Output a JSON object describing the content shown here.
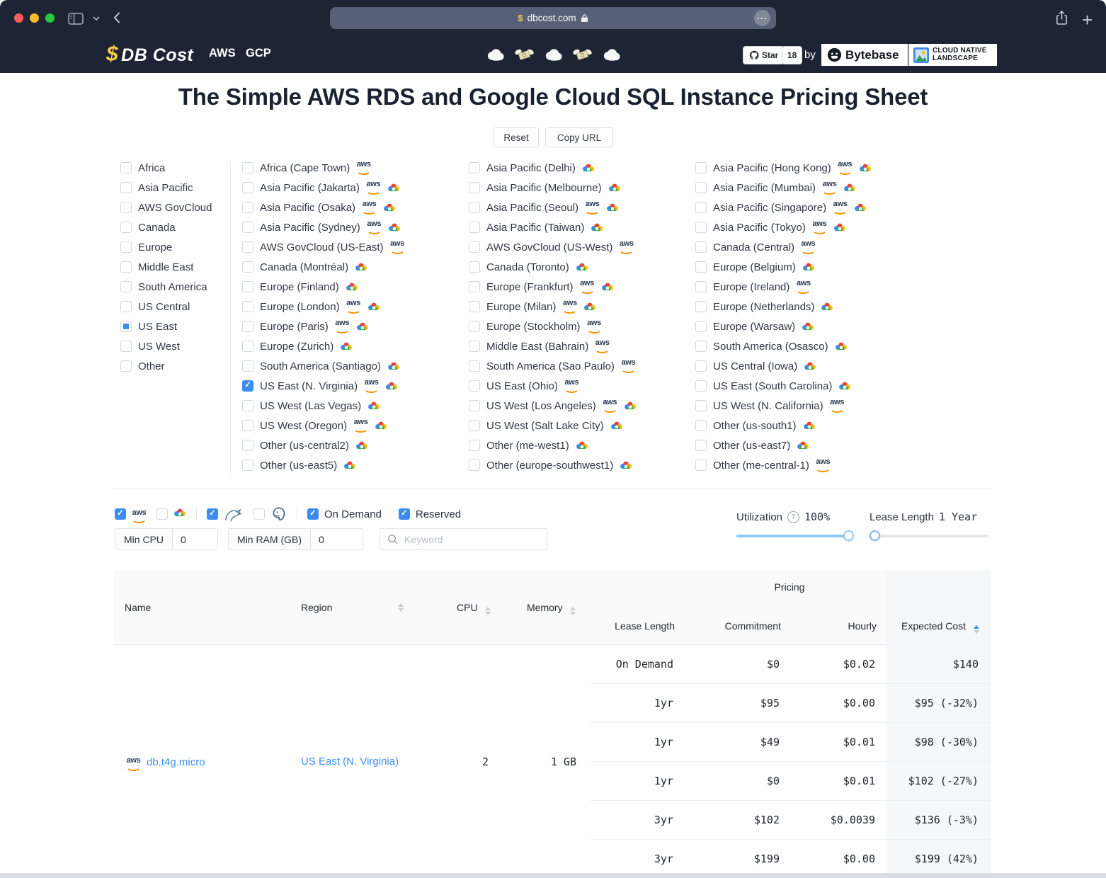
{
  "browser": {
    "url": "dbcost.com"
  },
  "header": {
    "logo": {
      "dollar": "$",
      "name": "DB Cost"
    },
    "nav": [
      {
        "label": "AWS"
      },
      {
        "label": "GCP"
      }
    ],
    "decor_icons": [
      "cloud",
      "money-with-wings",
      "cloud",
      "money-with-wings",
      "cloud"
    ],
    "github": {
      "star_label": "Star",
      "count": "18"
    },
    "by": "by",
    "bytebase_label": "Bytebase",
    "landscape_line1": "CLOUD NATIVE",
    "landscape_line2": "LANDSCAPE"
  },
  "page": {
    "title": "The Simple AWS RDS and Google Cloud SQL Instance Pricing Sheet",
    "reset_label": "Reset",
    "copy_url_label": "Copy URL"
  },
  "region_filters": {
    "groups": [
      {
        "label": "Africa",
        "state": "unchecked"
      },
      {
        "label": "Asia Pacific",
        "state": "unchecked"
      },
      {
        "label": "AWS GovCloud",
        "state": "unchecked"
      },
      {
        "label": "Canada",
        "state": "unchecked"
      },
      {
        "label": "Europe",
        "state": "unchecked"
      },
      {
        "label": "Middle East",
        "state": "unchecked"
      },
      {
        "label": "South America",
        "state": "unchecked"
      },
      {
        "label": "US Central",
        "state": "unchecked"
      },
      {
        "label": "US East",
        "state": "indeterminate"
      },
      {
        "label": "US West",
        "state": "unchecked"
      },
      {
        "label": "Other",
        "state": "unchecked"
      }
    ],
    "col2": [
      {
        "label": "Africa (Cape Town)",
        "providers": [
          "aws"
        ],
        "state": "unchecked"
      },
      {
        "label": "Asia Pacific (Jakarta)",
        "providers": [
          "aws",
          "gcp"
        ],
        "state": "unchecked"
      },
      {
        "label": "Asia Pacific (Osaka)",
        "providers": [
          "aws",
          "gcp"
        ],
        "state": "unchecked"
      },
      {
        "label": "Asia Pacific (Sydney)",
        "providers": [
          "aws",
          "gcp"
        ],
        "state": "unchecked"
      },
      {
        "label": "AWS GovCloud (US-East)",
        "providers": [
          "aws"
        ],
        "state": "unchecked"
      },
      {
        "label": "Canada (Montréal)",
        "providers": [
          "gcp"
        ],
        "state": "unchecked"
      },
      {
        "label": "Europe (Finland)",
        "providers": [
          "gcp"
        ],
        "state": "unchecked"
      },
      {
        "label": "Europe (London)",
        "providers": [
          "aws",
          "gcp"
        ],
        "state": "unchecked"
      },
      {
        "label": "Europe (Paris)",
        "providers": [
          "aws",
          "gcp"
        ],
        "state": "unchecked"
      },
      {
        "label": "Europe (Zurich)",
        "providers": [
          "gcp"
        ],
        "state": "unchecked"
      },
      {
        "label": "South America (Santiago)",
        "providers": [
          "gcp"
        ],
        "state": "unchecked"
      },
      {
        "label": "US East (N. Virginia)",
        "providers": [
          "aws",
          "gcp"
        ],
        "state": "checked"
      },
      {
        "label": "US West (Las Vegas)",
        "providers": [
          "gcp"
        ],
        "state": "unchecked"
      },
      {
        "label": "US West (Oregon)",
        "providers": [
          "aws",
          "gcp"
        ],
        "state": "unchecked"
      },
      {
        "label": "Other (us-central2)",
        "providers": [
          "gcp"
        ],
        "state": "unchecked"
      },
      {
        "label": "Other (us-east5)",
        "providers": [
          "gcp"
        ],
        "state": "unchecked"
      }
    ],
    "col3": [
      {
        "label": "Asia Pacific (Delhi)",
        "providers": [
          "gcp"
        ],
        "state": "unchecked"
      },
      {
        "label": "Asia Pacific (Melbourne)",
        "providers": [
          "gcp"
        ],
        "state": "unchecked"
      },
      {
        "label": "Asia Pacific (Seoul)",
        "providers": [
          "aws",
          "gcp"
        ],
        "state": "unchecked"
      },
      {
        "label": "Asia Pacific (Taiwan)",
        "providers": [
          "gcp"
        ],
        "state": "unchecked"
      },
      {
        "label": "AWS GovCloud (US-West)",
        "providers": [
          "aws"
        ],
        "state": "unchecked"
      },
      {
        "label": "Canada (Toronto)",
        "providers": [
          "gcp"
        ],
        "state": "unchecked"
      },
      {
        "label": "Europe (Frankfurt)",
        "providers": [
          "aws",
          "gcp"
        ],
        "state": "unchecked"
      },
      {
        "label": "Europe (Milan)",
        "providers": [
          "aws",
          "gcp"
        ],
        "state": "unchecked"
      },
      {
        "label": "Europe (Stockholm)",
        "providers": [
          "aws"
        ],
        "state": "unchecked"
      },
      {
        "label": "Middle East (Bahrain)",
        "providers": [
          "aws"
        ],
        "state": "unchecked"
      },
      {
        "label": "South America (Sao Paulo)",
        "providers": [
          "aws"
        ],
        "state": "unchecked"
      },
      {
        "label": "US East (Ohio)",
        "providers": [
          "aws"
        ],
        "state": "unchecked"
      },
      {
        "label": "US West (Los Angeles)",
        "providers": [
          "aws",
          "gcp"
        ],
        "state": "unchecked"
      },
      {
        "label": "US West (Salt Lake City)",
        "providers": [
          "gcp"
        ],
        "state": "unchecked"
      },
      {
        "label": "Other (me-west1)",
        "providers": [
          "gcp"
        ],
        "state": "unchecked"
      },
      {
        "label": "Other (europe-southwest1)",
        "providers": [
          "gcp"
        ],
        "state": "unchecked"
      }
    ],
    "col4": [
      {
        "label": "Asia Pacific (Hong Kong)",
        "providers": [
          "aws",
          "gcp"
        ],
        "state": "unchecked"
      },
      {
        "label": "Asia Pacific (Mumbai)",
        "providers": [
          "aws",
          "gcp"
        ],
        "state": "unchecked"
      },
      {
        "label": "Asia Pacific (Singapore)",
        "providers": [
          "aws",
          "gcp"
        ],
        "state": "unchecked"
      },
      {
        "label": "Asia Pacific (Tokyo)",
        "providers": [
          "aws",
          "gcp"
        ],
        "state": "unchecked"
      },
      {
        "label": "Canada (Central)",
        "providers": [
          "aws"
        ],
        "state": "unchecked"
      },
      {
        "label": "Europe (Belgium)",
        "providers": [
          "gcp"
        ],
        "state": "unchecked"
      },
      {
        "label": "Europe (Ireland)",
        "providers": [
          "aws"
        ],
        "state": "unchecked"
      },
      {
        "label": "Europe (Netherlands)",
        "providers": [
          "gcp"
        ],
        "state": "unchecked"
      },
      {
        "label": "Europe (Warsaw)",
        "providers": [
          "gcp"
        ],
        "state": "unchecked"
      },
      {
        "label": "South America (Osasco)",
        "providers": [
          "gcp"
        ],
        "state": "unchecked"
      },
      {
        "label": "US Central (Iowa)",
        "providers": [
          "gcp"
        ],
        "state": "unchecked"
      },
      {
        "label": "US East (South Carolina)",
        "providers": [
          "gcp"
        ],
        "state": "unchecked"
      },
      {
        "label": "US West (N. California)",
        "providers": [
          "aws"
        ],
        "state": "unchecked"
      },
      {
        "label": "Other (us-south1)",
        "providers": [
          "gcp"
        ],
        "state": "unchecked"
      },
      {
        "label": "Other (us-east7)",
        "providers": [
          "gcp"
        ],
        "state": "unchecked"
      },
      {
        "label": "Other (me-central-1)",
        "providers": [
          "aws"
        ],
        "state": "unchecked"
      }
    ]
  },
  "filters": {
    "provider": [
      {
        "icon": "aws",
        "state": "checked"
      },
      {
        "icon": "gcp",
        "state": "unchecked"
      }
    ],
    "engine": [
      {
        "icon": "mysql",
        "state": "checked"
      },
      {
        "icon": "postgres",
        "state": "unchecked"
      }
    ],
    "charge": [
      {
        "label": "On Demand",
        "state": "checked"
      },
      {
        "label": "Reserved",
        "state": "checked"
      }
    ],
    "min_cpu": {
      "label": "Min CPU",
      "value": "0"
    },
    "min_ram": {
      "label": "Min RAM (GB)",
      "value": "0"
    },
    "keyword": {
      "placeholder": "Keyword"
    },
    "utilization": {
      "label": "Utilization",
      "value": "100%"
    },
    "lease": {
      "label": "Lease Length",
      "value": "1 Year"
    }
  },
  "table": {
    "pricing_group": "Pricing",
    "columns": {
      "name": "Name",
      "region": "Region",
      "cpu": "CPU",
      "memory": "Memory",
      "lease": "Lease Length",
      "commitment": "Commitment",
      "hourly": "Hourly",
      "expected": "Expected Cost"
    },
    "row": {
      "name": "db.t4g.micro",
      "provider": "aws",
      "region": "US East (N. Virginia)",
      "cpu": "2",
      "memory": "1 GB"
    },
    "pricing_rows": [
      {
        "lease": "On Demand",
        "commitment": "$0",
        "hourly": "$0.02",
        "expected": "$140"
      },
      {
        "lease": "1yr",
        "commitment": "$95",
        "hourly": "$0.00",
        "expected": "$95 (-32%)"
      },
      {
        "lease": "1yr",
        "commitment": "$49",
        "hourly": "$0.01",
        "expected": "$98 (-30%)"
      },
      {
        "lease": "1yr",
        "commitment": "$0",
        "hourly": "$0.01",
        "expected": "$102 (-27%)"
      },
      {
        "lease": "3yr",
        "commitment": "$102",
        "hourly": "$0.0039",
        "expected": "$136 (-3%)"
      },
      {
        "lease": "3yr",
        "commitment": "$199",
        "hourly": "$0.00",
        "expected": "$199 (42%)"
      }
    ]
  },
  "colors": {
    "chrome_bg": "#1d2535",
    "accent_blue": "#3b8cf0",
    "link_blue": "#3e8ff2",
    "slider_blue": "#91c9f2",
    "aws_orange": "#f79400",
    "gcp_blue": "#4285f4",
    "gcp_red": "#ea4335",
    "gcp_yellow": "#fbbc05",
    "gcp_green": "#34a853",
    "traffic_red": "#ff5f57",
    "traffic_yellow": "#febc2e",
    "traffic_green": "#28c840"
  }
}
